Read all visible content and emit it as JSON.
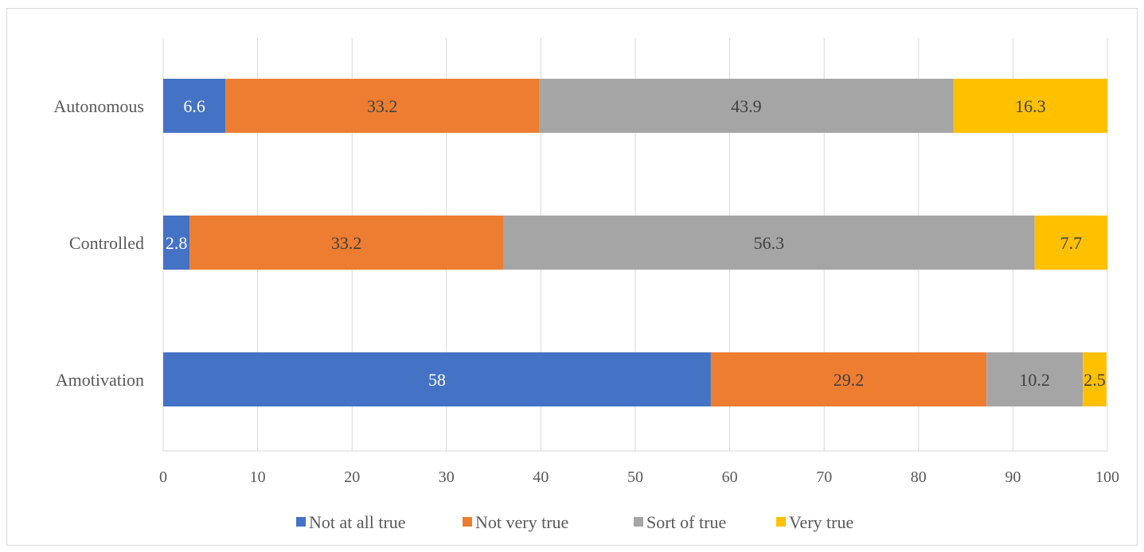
{
  "chart_data": {
    "type": "bar",
    "orientation": "horizontal",
    "stacked": true,
    "categories": [
      "Autonomous",
      "Controlled",
      "Amotivation"
    ],
    "series": [
      {
        "name": "Not at all true",
        "color": "#4472C4",
        "label_color": "#ffffff",
        "values": [
          6.6,
          2.8,
          58
        ]
      },
      {
        "name": "Not very true",
        "color": "#ED7D31",
        "label_color": "#404040",
        "values": [
          33.2,
          33.2,
          29.2
        ]
      },
      {
        "name": "Sort of true",
        "color": "#A5A5A5",
        "label_color": "#404040",
        "values": [
          43.9,
          56.3,
          10.2
        ]
      },
      {
        "name": "Very true",
        "color": "#FFC000",
        "label_color": "#404040",
        "values": [
          16.3,
          7.7,
          2.5
        ]
      }
    ],
    "xlim": [
      0,
      100
    ],
    "xticks": [
      "0",
      "10",
      "20",
      "30",
      "40",
      "50",
      "60",
      "70",
      "80",
      "90",
      "100"
    ],
    "grid": "vertical",
    "legend_position": "bottom",
    "title": "",
    "xlabel": "",
    "ylabel": ""
  }
}
